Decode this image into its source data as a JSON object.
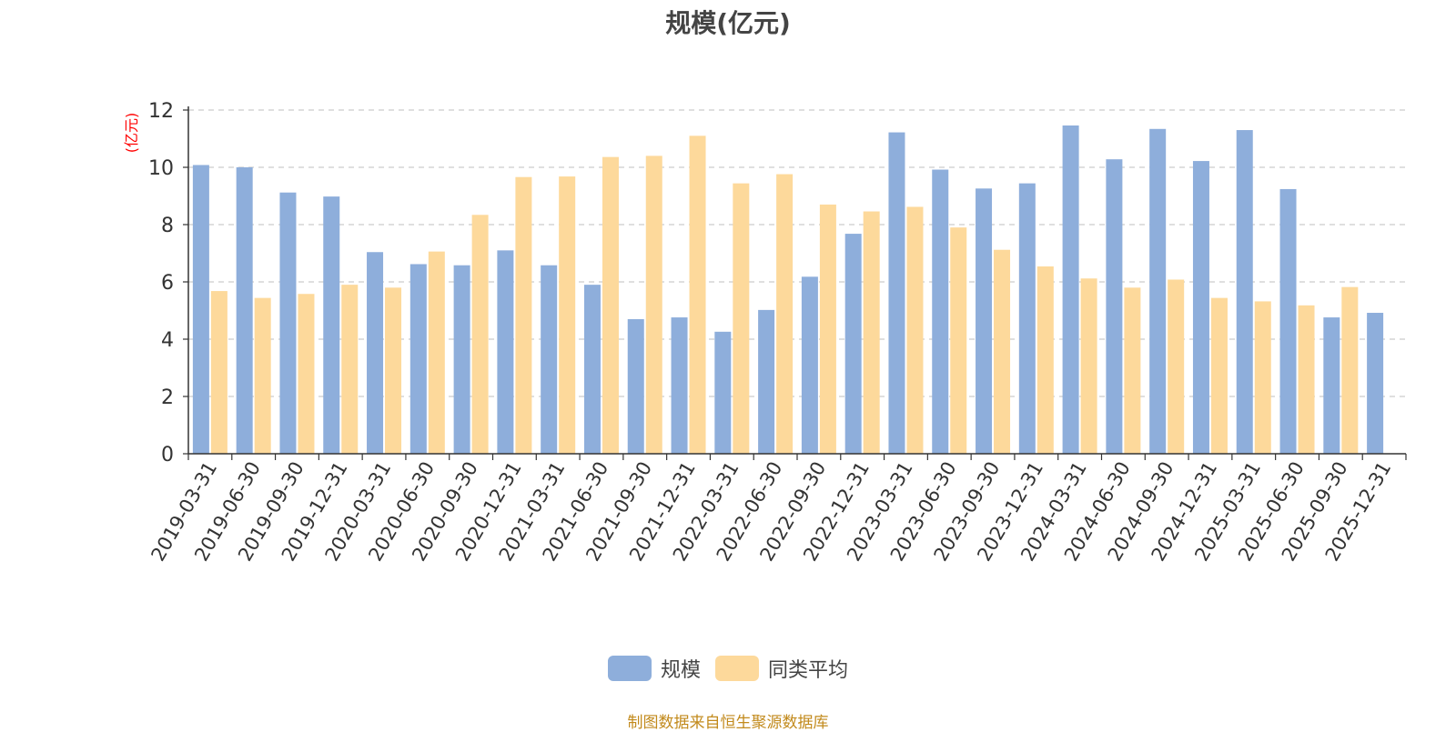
{
  "colors": {
    "series_1": "#8eaedb",
    "series_2": "#fdd99b",
    "grid": "#cccccc",
    "axis": "#333333",
    "unit_label": "#ff0000"
  },
  "source_note": "制图数据来自恒生聚源数据库",
  "chart_data": {
    "type": "bar",
    "title": "规模(亿元)",
    "ylabel": "(亿元)",
    "xlabel": "",
    "ylim": [
      0,
      12
    ],
    "yticks": [
      0,
      2,
      4,
      6,
      8,
      10,
      12
    ],
    "grid": true,
    "legend_position": "bottom",
    "categories": [
      "2019-03-31",
      "2019-06-30",
      "2019-09-30",
      "2019-12-31",
      "2020-03-31",
      "2020-06-30",
      "2020-09-30",
      "2020-12-31",
      "2021-03-31",
      "2021-06-30",
      "2021-09-30",
      "2021-12-31",
      "2022-03-31",
      "2022-06-30",
      "2022-09-30",
      "2022-12-31",
      "2023-03-31",
      "2023-06-30",
      "2023-09-30",
      "2023-12-31",
      "2024-03-31",
      "2024-06-30",
      "2024-09-30",
      "2024-12-31",
      "2025-03-31",
      "2025-06-30",
      "2025-09-30",
      "2025-12-31"
    ],
    "series": [
      {
        "name": "规模",
        "values": [
          10.08,
          10.0,
          9.12,
          8.98,
          7.04,
          6.62,
          6.58,
          7.1,
          6.58,
          5.9,
          4.7,
          4.76,
          4.26,
          5.02,
          6.18,
          7.68,
          11.22,
          9.92,
          9.26,
          9.44,
          11.46,
          10.28,
          11.34,
          10.22,
          11.3,
          9.24,
          4.76,
          4.92
        ]
      },
      {
        "name": "同类平均",
        "values": [
          5.68,
          5.44,
          5.58,
          5.9,
          5.8,
          7.06,
          8.34,
          9.66,
          9.68,
          10.36,
          10.4,
          11.1,
          9.44,
          9.76,
          8.7,
          8.46,
          8.62,
          7.9,
          7.12,
          6.54,
          6.12,
          5.8,
          6.08,
          5.44,
          5.32,
          5.18,
          5.82,
          null
        ]
      }
    ]
  }
}
